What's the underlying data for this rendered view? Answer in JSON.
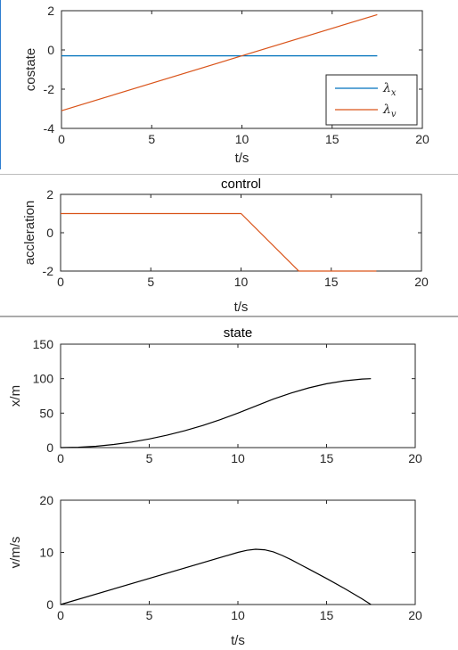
{
  "chart_data": [
    {
      "id": "costate",
      "type": "line",
      "title": "",
      "xlabel": "t/s",
      "ylabel": "costate",
      "xlim": [
        0,
        20
      ],
      "ylim": [
        -4,
        2
      ],
      "xticks": [
        "0",
        "5",
        "10",
        "15",
        "20"
      ],
      "yticks": [
        "-4",
        "-2",
        "0",
        "2"
      ],
      "legend": "bottom-right",
      "series": [
        {
          "name": "λx",
          "color": "#0072BD",
          "x": [
            0,
            17.5
          ],
          "y": [
            -0.3,
            -0.3
          ]
        },
        {
          "name": "λv",
          "color": "#D95319",
          "x": [
            0,
            17.5
          ],
          "y": [
            -3.1,
            1.8
          ]
        }
      ]
    },
    {
      "id": "control",
      "type": "line",
      "title": "control",
      "xlabel": "t/s",
      "ylabel": "accleration",
      "xlim": [
        0,
        20
      ],
      "ylim": [
        -2,
        2
      ],
      "xticks": [
        "0",
        "5",
        "10",
        "15",
        "20"
      ],
      "yticks": [
        "-2",
        "0",
        "2"
      ],
      "series": [
        {
          "color": "#D95319",
          "x": [
            0,
            10,
            13.2,
            17.5
          ],
          "y": [
            1,
            1,
            -2,
            -2
          ]
        }
      ]
    },
    {
      "id": "state-x",
      "type": "line",
      "title": "state",
      "xlabel": "",
      "ylabel": "x/m",
      "xlim": [
        0,
        20
      ],
      "ylim": [
        0,
        150
      ],
      "xticks": [
        "0",
        "5",
        "10",
        "15",
        "20"
      ],
      "yticks": [
        "0",
        "50",
        "100",
        "150"
      ],
      "series": [
        {
          "color": "#000000",
          "x": [
            0,
            1,
            2,
            3,
            4,
            5,
            6,
            7,
            8,
            9,
            10,
            11,
            12,
            13,
            14,
            15,
            16,
            17,
            17.5
          ],
          "y": [
            0,
            0.5,
            2,
            4.5,
            8,
            12.5,
            18,
            24.5,
            32,
            40.5,
            50,
            60.3,
            70.3,
            79.2,
            86.7,
            92.6,
            96.9,
            99.4,
            100
          ]
        }
      ]
    },
    {
      "id": "state-v",
      "type": "line",
      "title": "",
      "xlabel": "t/s",
      "ylabel": "v/m/s",
      "xlim": [
        0,
        20
      ],
      "ylim": [
        0,
        20
      ],
      "xticks": [
        "0",
        "5",
        "10",
        "15",
        "20"
      ],
      "yticks": [
        "0",
        "10",
        "20"
      ],
      "series": [
        {
          "color": "#000000",
          "x": [
            0,
            10,
            10.5,
            11,
            11.5,
            12,
            12.5,
            13,
            13.5,
            14,
            15,
            16,
            17,
            17.5
          ],
          "y": [
            0,
            10,
            10.4,
            10.6,
            10.5,
            10.1,
            9.4,
            8.6,
            7.7,
            6.8,
            5.0,
            3.1,
            1.1,
            0
          ]
        }
      ]
    }
  ]
}
